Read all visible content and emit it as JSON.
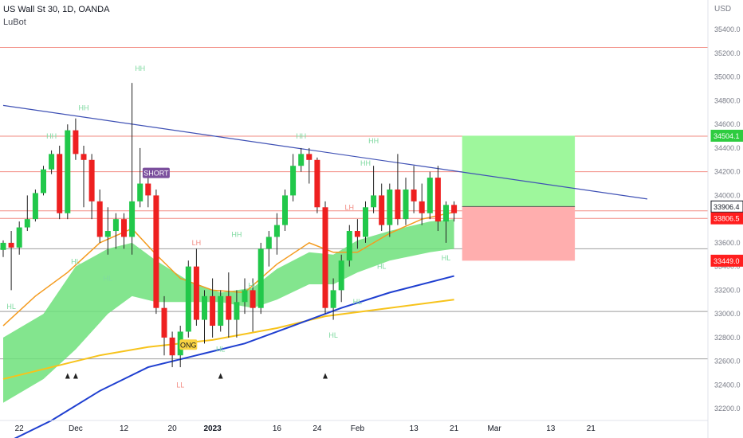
{
  "header": {
    "symbol": "US Wall St 30, 1D, OANDA",
    "indicator": "LuBot"
  },
  "chart_data": {
    "type": "candlestick",
    "currency": "USD",
    "ylim": [
      32100,
      35650
    ],
    "y_ticks": [
      32200,
      32400,
      32600,
      32800,
      33000,
      33200,
      33400,
      33600,
      33800,
      34000,
      34200,
      34400,
      34600,
      34800,
      35000,
      35200,
      35400
    ],
    "x_ticks": [
      {
        "label": "22",
        "idx": 2
      },
      {
        "label": "Dec",
        "idx": 9
      },
      {
        "label": "12",
        "idx": 15
      },
      {
        "label": "20",
        "idx": 21
      },
      {
        "label": "2023",
        "idx": 26
      },
      {
        "label": "16",
        "idx": 34
      },
      {
        "label": "24",
        "idx": 39
      },
      {
        "label": "Feb",
        "idx": 44
      },
      {
        "label": "13",
        "idx": 51
      },
      {
        "label": "21",
        "idx": 56
      },
      {
        "label": "Mar",
        "idx": 61
      },
      {
        "label": "13",
        "idx": 68
      },
      {
        "label": "21",
        "idx": 73
      }
    ],
    "candles": [
      {
        "o": 33540,
        "h": 33620,
        "l": 33480,
        "c": 33600
      },
      {
        "o": 33600,
        "h": 33700,
        "l": 33200,
        "c": 33560
      },
      {
        "o": 33560,
        "h": 33780,
        "l": 33500,
        "c": 33730
      },
      {
        "o": 33730,
        "h": 34000,
        "l": 33700,
        "c": 33800
      },
      {
        "o": 33800,
        "h": 34050,
        "l": 33780,
        "c": 34020
      },
      {
        "o": 34020,
        "h": 34250,
        "l": 34000,
        "c": 34220
      },
      {
        "o": 34220,
        "h": 34380,
        "l": 34180,
        "c": 34350
      },
      {
        "o": 34350,
        "h": 34420,
        "l": 33800,
        "c": 33850
      },
      {
        "o": 33850,
        "h": 34600,
        "l": 33800,
        "c": 34550
      },
      {
        "o": 34550,
        "h": 34650,
        "l": 34300,
        "c": 34350
      },
      {
        "o": 34350,
        "h": 34420,
        "l": 33900,
        "c": 34300
      },
      {
        "o": 34300,
        "h": 34350,
        "l": 33800,
        "c": 33950
      },
      {
        "o": 33950,
        "h": 34050,
        "l": 33600,
        "c": 33650
      },
      {
        "o": 33650,
        "h": 33900,
        "l": 33500,
        "c": 33700
      },
      {
        "o": 33700,
        "h": 33850,
        "l": 33550,
        "c": 33800
      },
      {
        "o": 33800,
        "h": 33850,
        "l": 33550,
        "c": 33650
      },
      {
        "o": 33650,
        "h": 34950,
        "l": 33500,
        "c": 33950
      },
      {
        "o": 33950,
        "h": 34400,
        "l": 33900,
        "c": 34100
      },
      {
        "o": 34100,
        "h": 34200,
        "l": 33900,
        "c": 34000
      },
      {
        "o": 34000,
        "h": 34050,
        "l": 33000,
        "c": 33050
      },
      {
        "o": 33050,
        "h": 33150,
        "l": 32650,
        "c": 32800
      },
      {
        "o": 32800,
        "h": 32850,
        "l": 32550,
        "c": 32650
      },
      {
        "o": 32650,
        "h": 32900,
        "l": 32550,
        "c": 32850
      },
      {
        "o": 32850,
        "h": 33450,
        "l": 32800,
        "c": 33400
      },
      {
        "o": 33400,
        "h": 33550,
        "l": 32900,
        "c": 32950
      },
      {
        "o": 32950,
        "h": 33200,
        "l": 32750,
        "c": 33150
      },
      {
        "o": 33150,
        "h": 33300,
        "l": 32800,
        "c": 32900
      },
      {
        "o": 32900,
        "h": 33200,
        "l": 32850,
        "c": 33150
      },
      {
        "o": 33150,
        "h": 33350,
        "l": 32800,
        "c": 32950
      },
      {
        "o": 32950,
        "h": 33200,
        "l": 32800,
        "c": 33100
      },
      {
        "o": 33100,
        "h": 33300,
        "l": 33000,
        "c": 33200
      },
      {
        "o": 33200,
        "h": 33300,
        "l": 32850,
        "c": 33050
      },
      {
        "o": 33050,
        "h": 33600,
        "l": 33000,
        "c": 33550
      },
      {
        "o": 33550,
        "h": 33700,
        "l": 33400,
        "c": 33650
      },
      {
        "o": 33650,
        "h": 33850,
        "l": 33500,
        "c": 33750
      },
      {
        "o": 33750,
        "h": 34050,
        "l": 33700,
        "c": 34000
      },
      {
        "o": 34000,
        "h": 34350,
        "l": 33950,
        "c": 34250
      },
      {
        "o": 34250,
        "h": 34400,
        "l": 34200,
        "c": 34350
      },
      {
        "o": 34350,
        "h": 34400,
        "l": 34100,
        "c": 34300
      },
      {
        "o": 34300,
        "h": 34320,
        "l": 33850,
        "c": 33900
      },
      {
        "o": 33900,
        "h": 33950,
        "l": 33000,
        "c": 33050
      },
      {
        "o": 33050,
        "h": 33300,
        "l": 32950,
        "c": 33200
      },
      {
        "o": 33200,
        "h": 33500,
        "l": 33100,
        "c": 33450
      },
      {
        "o": 33450,
        "h": 33750,
        "l": 33400,
        "c": 33700
      },
      {
        "o": 33700,
        "h": 33800,
        "l": 33550,
        "c": 33650
      },
      {
        "o": 33650,
        "h": 33950,
        "l": 33600,
        "c": 33900
      },
      {
        "o": 33900,
        "h": 34250,
        "l": 33850,
        "c": 34000
      },
      {
        "o": 34000,
        "h": 34100,
        "l": 33700,
        "c": 33750
      },
      {
        "o": 33750,
        "h": 34100,
        "l": 33650,
        "c": 34050
      },
      {
        "o": 34050,
        "h": 34350,
        "l": 33750,
        "c": 33800
      },
      {
        "o": 33800,
        "h": 34150,
        "l": 33750,
        "c": 34050
      },
      {
        "o": 34050,
        "h": 34250,
        "l": 33850,
        "c": 33950
      },
      {
        "o": 33950,
        "h": 34100,
        "l": 33750,
        "c": 33850
      },
      {
        "o": 33850,
        "h": 34200,
        "l": 33800,
        "c": 34150
      },
      {
        "o": 34150,
        "h": 34250,
        "l": 33700,
        "c": 33780
      },
      {
        "o": 33780,
        "h": 33950,
        "l": 33600,
        "c": 33920
      },
      {
        "o": 33920,
        "h": 33950,
        "l": 33780,
        "c": 33850
      }
    ],
    "horizontal_levels": [
      {
        "value": 35250,
        "color": "#f28b82"
      },
      {
        "value": 34500,
        "color": "#f28b82"
      },
      {
        "value": 34200,
        "color": "#f28b82"
      },
      {
        "value": 33870,
        "color": "#f28b82"
      },
      {
        "value": 33806,
        "color": "#f28b82"
      },
      {
        "value": 33550,
        "color": "#9e9e9e"
      },
      {
        "value": 33020,
        "color": "#9e9e9e"
      },
      {
        "value": 32620,
        "color": "#9e9e9e"
      }
    ],
    "trendline": {
      "from": {
        "idx": 0,
        "value": 34760
      },
      "to": {
        "idx": 80,
        "value": 33970
      },
      "color": "#3f51b5"
    },
    "orange_ma": [
      [
        0,
        32900
      ],
      [
        4,
        33150
      ],
      [
        8,
        33350
      ],
      [
        12,
        33600
      ],
      [
        16,
        33720
      ],
      [
        19,
        33500
      ],
      [
        22,
        33300
      ],
      [
        26,
        33200
      ],
      [
        30,
        33180
      ],
      [
        34,
        33420
      ],
      [
        38,
        33600
      ],
      [
        41,
        33520
      ],
      [
        44,
        33520
      ],
      [
        48,
        33680
      ],
      [
        52,
        33800
      ],
      [
        56,
        33860
      ]
    ],
    "yellow_ma": [
      [
        0,
        32450
      ],
      [
        6,
        32550
      ],
      [
        12,
        32650
      ],
      [
        18,
        32720
      ],
      [
        26,
        32780
      ],
      [
        34,
        32880
      ],
      [
        40,
        32980
      ],
      [
        48,
        33050
      ],
      [
        56,
        33120
      ]
    ],
    "blue_ma": [
      [
        0,
        31900
      ],
      [
        6,
        32100
      ],
      [
        12,
        32350
      ],
      [
        18,
        32550
      ],
      [
        24,
        32650
      ],
      [
        30,
        32750
      ],
      [
        36,
        32900
      ],
      [
        42,
        33050
      ],
      [
        48,
        33180
      ],
      [
        56,
        33320
      ]
    ],
    "cloud_upper": [
      [
        0,
        32800
      ],
      [
        5,
        33000
      ],
      [
        9,
        33400
      ],
      [
        13,
        33550
      ],
      [
        16,
        33600
      ],
      [
        19,
        33450
      ],
      [
        23,
        33280
      ],
      [
        27,
        33180
      ],
      [
        31,
        33220
      ],
      [
        34,
        33380
      ],
      [
        38,
        33520
      ],
      [
        41,
        33500
      ],
      [
        44,
        33620
      ],
      [
        48,
        33700
      ],
      [
        53,
        33780
      ],
      [
        56,
        33800
      ]
    ],
    "cloud_lower": [
      [
        0,
        32250
      ],
      [
        5,
        32450
      ],
      [
        9,
        32700
      ],
      [
        13,
        33000
      ],
      [
        16,
        33150
      ],
      [
        19,
        33100
      ],
      [
        23,
        33100
      ],
      [
        27,
        33100
      ],
      [
        31,
        33050
      ],
      [
        34,
        33120
      ],
      [
        38,
        33250
      ],
      [
        41,
        33250
      ],
      [
        44,
        33350
      ],
      [
        48,
        33450
      ],
      [
        53,
        33520
      ],
      [
        56,
        33550
      ]
    ],
    "trade_box": {
      "from_idx": 57,
      "to_idx": 71,
      "entry": 33906.4,
      "target": 34504.1,
      "stop": 33449.0
    },
    "pivot_labels": [
      {
        "text": "HH",
        "idx": 17,
        "value": 35050,
        "color": "#7fd9a0"
      },
      {
        "text": "HH",
        "idx": 10,
        "value": 34720,
        "color": "#7fd9a0"
      },
      {
        "text": "HH",
        "idx": 6,
        "value": 34480,
        "color": "#7fd9a0"
      },
      {
        "text": "HH",
        "idx": 37,
        "value": 34480,
        "color": "#7fd9a0"
      },
      {
        "text": "HH",
        "idx": 46,
        "value": 34440,
        "color": "#7fd9a0"
      },
      {
        "text": "HH",
        "idx": 45,
        "value": 34250,
        "color": "#7fd9a0"
      },
      {
        "text": "HH",
        "idx": 29,
        "value": 33650,
        "color": "#7fd9a0"
      },
      {
        "text": "HL",
        "idx": 9,
        "value": 33420,
        "color": "#7fd9a0"
      },
      {
        "text": "HL",
        "idx": 13,
        "value": 33280,
        "color": "#7fd9a0"
      },
      {
        "text": "HL",
        "idx": 1,
        "value": 33040,
        "color": "#7fd9a0"
      },
      {
        "text": "HL",
        "idx": 31,
        "value": 33220,
        "color": "#7fd9a0"
      },
      {
        "text": "HL",
        "idx": 47,
        "value": 33380,
        "color": "#7fd9a0"
      },
      {
        "text": "HL",
        "idx": 44,
        "value": 33080,
        "color": "#7fd9a0"
      },
      {
        "text": "HL",
        "idx": 55,
        "value": 33450,
        "color": "#7fd9a0"
      },
      {
        "text": "HL",
        "idx": 27,
        "value": 32680,
        "color": "#7fd9a0"
      },
      {
        "text": "HL",
        "idx": 41,
        "value": 32800,
        "color": "#7fd9a0"
      },
      {
        "text": "LH",
        "idx": 24,
        "value": 33580,
        "color": "#f28b82"
      },
      {
        "text": "LH",
        "idx": 43,
        "value": 33880,
        "color": "#f28b82"
      },
      {
        "text": "LL",
        "idx": 22,
        "value": 32380,
        "color": "#f28b82"
      }
    ],
    "signals": [
      {
        "text": "SHORT",
        "idx": 19,
        "value": 34180,
        "bg": "#7b4f9d",
        "color": "#ffffff"
      },
      {
        "text": "ONG",
        "idx": 23,
        "value": 32730,
        "bg": "#f9d342",
        "color": "#131722"
      }
    ],
    "arrows": [
      {
        "idx": 8,
        "value": 32480
      },
      {
        "idx": 9,
        "value": 32480
      },
      {
        "idx": 27,
        "value": 32480
      },
      {
        "idx": 40,
        "value": 32480
      }
    ],
    "price_tags": [
      {
        "value": 34504.1,
        "label": "34504.1",
        "bg": "#2ecc40",
        "color": "#ffffff"
      },
      {
        "value": 33906.4,
        "label": "33906.4",
        "bg": "#ffffff",
        "color": "#131722",
        "border": "#131722"
      },
      {
        "value": 33806.5,
        "label": "33806.5",
        "bg": "#ff1e1e",
        "color": "#ffffff"
      },
      {
        "value": 33449.0,
        "label": "33449.0",
        "bg": "#ff1e1e",
        "color": "#ffffff"
      }
    ],
    "colors": {
      "up": "#21c84a",
      "down": "#ee2020",
      "orange": "#f49b1f",
      "yellow": "#f7c31b",
      "blue": "#1f3fd0",
      "cloud": "#6de07a"
    }
  }
}
